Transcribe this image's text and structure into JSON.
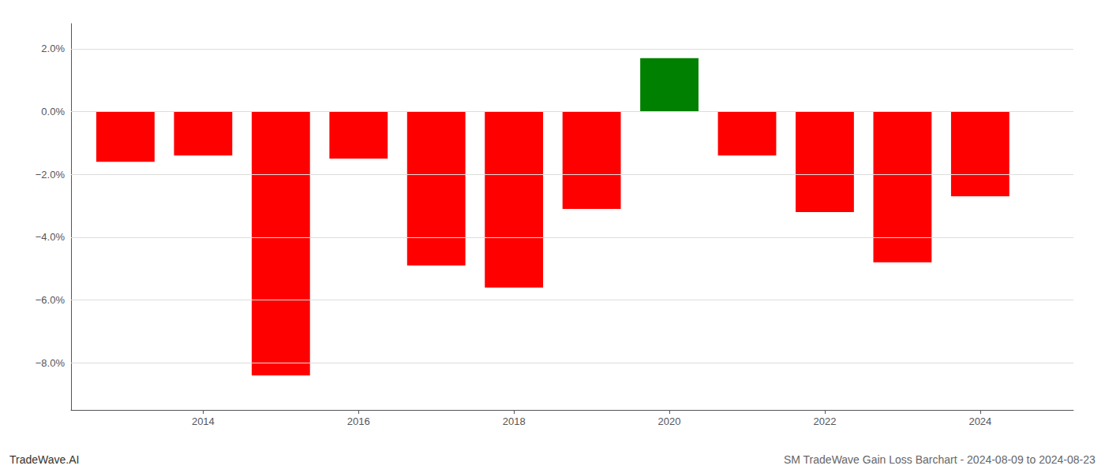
{
  "chart_data": {
    "type": "bar",
    "title": "TradeWave.AI",
    "subtitle": "SM TradeWave Gain Loss Barchart - 2024-08-09 to 2024-08-23",
    "x": [
      2013,
      2014,
      2015,
      2016,
      2017,
      2018,
      2019,
      2020,
      2021,
      2022,
      2023,
      2024
    ],
    "values": [
      -1.6,
      -1.4,
      -8.4,
      -1.5,
      -4.9,
      -5.6,
      -3.1,
      1.7,
      -1.4,
      -3.2,
      -4.8,
      -2.7
    ],
    "colors": [
      "#ff0000",
      "#ff0000",
      "#ff0000",
      "#ff0000",
      "#ff0000",
      "#ff0000",
      "#ff0000",
      "#008000",
      "#ff0000",
      "#ff0000",
      "#ff0000",
      "#ff0000"
    ],
    "xlim": [
      2012.3,
      2025.2
    ],
    "xticks": [
      2014,
      2016,
      2018,
      2020,
      2022,
      2024
    ],
    "ylim": [
      -9.5,
      2.8
    ],
    "yticks": [
      {
        "value": -8.0,
        "label": "−8.0%"
      },
      {
        "value": -6.0,
        "label": "−6.0%"
      },
      {
        "value": -4.0,
        "label": "−4.0%"
      },
      {
        "value": -2.0,
        "label": "−2.0%"
      },
      {
        "value": 0.0,
        "label": "0.0%"
      },
      {
        "value": 2.0,
        "label": "2.0%"
      }
    ],
    "grid": true
  }
}
